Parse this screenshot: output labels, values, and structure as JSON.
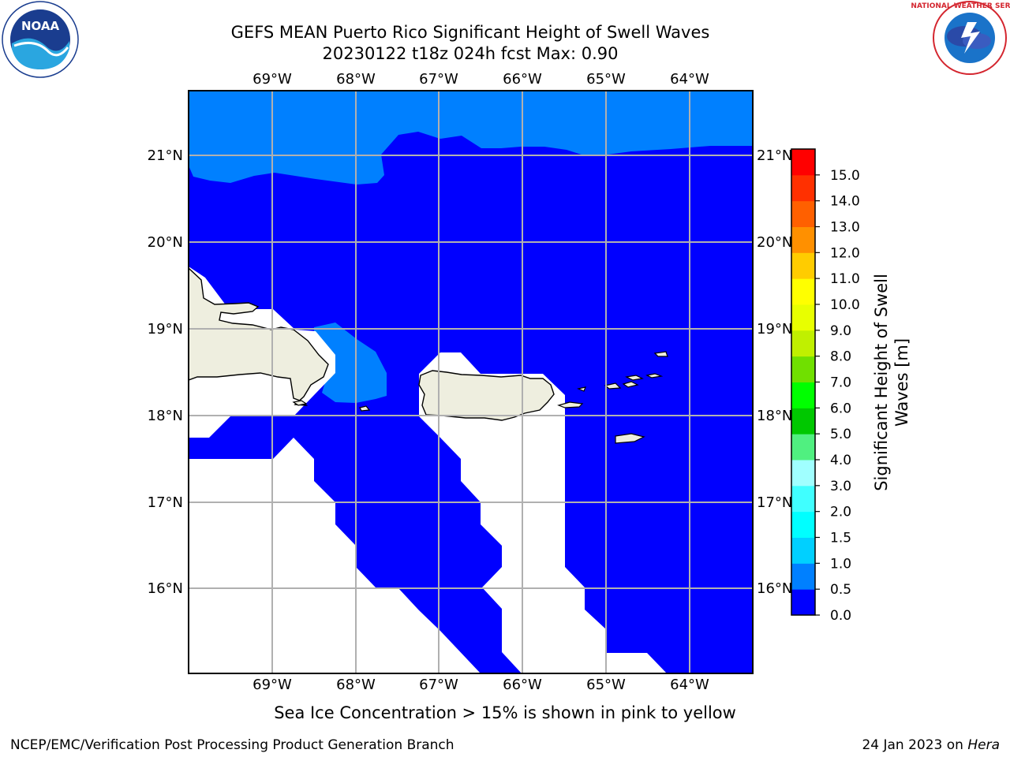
{
  "title_line1": "GEFS MEAN Puerto Rico Significant Height of Swell Waves",
  "title_line2": "20230122 t18z 024h fcst   Max: 0.90",
  "lon_labels": [
    "69°W",
    "68°W",
    "67°W",
    "66°W",
    "65°W",
    "64°W"
  ],
  "lat_labels": [
    "21°N",
    "20°N",
    "19°N",
    "18°N",
    "17°N",
    "16°N"
  ],
  "colorbar": {
    "label_line1": "Significant Height of Swell",
    "label_line2": "Waves [m]",
    "ticks": [
      "0.0",
      "0.5",
      "1.0",
      "1.5",
      "2.0",
      "3.0",
      "4.0",
      "5.0",
      "6.0",
      "7.0",
      "8.0",
      "9.0",
      "10.0",
      "11.0",
      "12.0",
      "13.0",
      "14.0",
      "15.0"
    ],
    "colors": [
      "#0000ff",
      "#0080ff",
      "#00d0ff",
      "#00ffff",
      "#40ffff",
      "#a0ffff",
      "#50f080",
      "#00c800",
      "#00ff00",
      "#70e000",
      "#c0f000",
      "#e8ff00",
      "#ffff00",
      "#ffcc00",
      "#ff9000",
      "#ff6000",
      "#ff3000",
      "#ff0000"
    ]
  },
  "note": "Sea Ice Concentration > 15% is shown in pink to yellow",
  "footer_left": "NCEP/EMC/Verification Post Processing Product Generation Branch",
  "footer_right_date": "24 Jan 2023 on ",
  "footer_right_machine": "Hera",
  "logos": {
    "noaa": {
      "text": "NOAA",
      "ring": "NATIONAL OCEANIC AND ATMOSPHERIC ADMINISTRATION · U.S. DEPARTMENT OF COMMERCE"
    },
    "nws": {
      "text": "NATIONAL WEATHER SERVICE"
    }
  },
  "map_colors": {
    "deep": "#0000ff",
    "light": "#0080ff",
    "land": "#eeeedf",
    "grid": "#b0b0b0"
  }
}
